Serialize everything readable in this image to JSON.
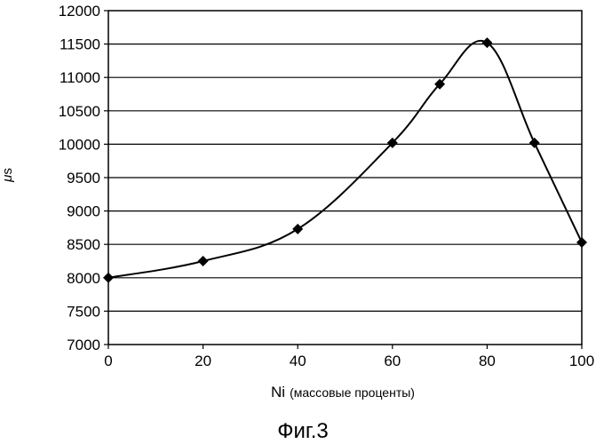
{
  "chart_data": {
    "type": "line",
    "x": [
      0,
      20,
      40,
      60,
      70,
      80,
      90,
      100
    ],
    "series": [
      {
        "values": [
          8000,
          8250,
          8730,
          10020,
          10900,
          11520,
          10020,
          8530
        ]
      }
    ],
    "xlabel_main": "Ni",
    "xlabel_note": "(массовые проценты)",
    "ylabel_symbol": "μ",
    "ylabel_suffix": "s",
    "xlim": [
      0,
      100
    ],
    "ylim": [
      7000,
      12000
    ],
    "x_ticks": [
      "0",
      "20",
      "40",
      "60",
      "80",
      "100"
    ],
    "y_ticks": [
      "7000",
      "7500",
      "8000",
      "8500",
      "9000",
      "9500",
      "10000",
      "10500",
      "11000",
      "11500",
      "12000"
    ],
    "grid": "horizontal",
    "line_color": "#000000",
    "marker": "diamond"
  },
  "caption": "Фиг.3"
}
